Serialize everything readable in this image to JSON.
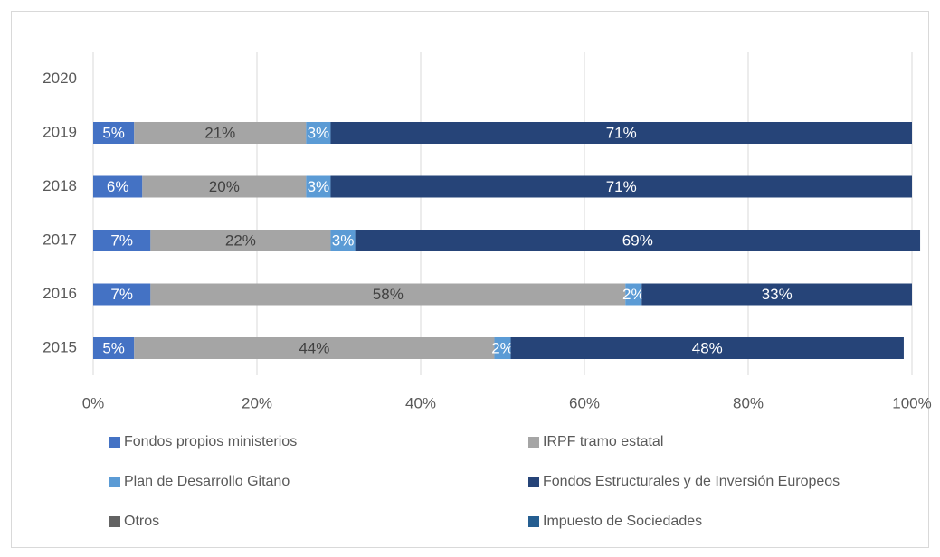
{
  "chart_data": {
    "type": "stacked-bar-horizontal",
    "categories": [
      "2015",
      "2016",
      "2017",
      "2018",
      "2019",
      "2020"
    ],
    "series": [
      {
        "name": "Fondos propios ministerios",
        "color": "#4472c4",
        "values": [
          5,
          7,
          7,
          6,
          5,
          null
        ],
        "value_labels": [
          "5%",
          "7%",
          "7%",
          "6%",
          "5%",
          null
        ]
      },
      {
        "name": "IRPF tramo estatal",
        "color": "#a5a5a5",
        "values": [
          44,
          58,
          22,
          20,
          21,
          null
        ],
        "value_labels": [
          "44%",
          "58%",
          "22%",
          "20%",
          "21%",
          null
        ]
      },
      {
        "name": "Plan de Desarrollo Gitano",
        "color": "#5b9bd5",
        "values": [
          2,
          2,
          3,
          3,
          3,
          null
        ],
        "value_labels": [
          "2%",
          "2%",
          "3%",
          "3%",
          "3%",
          null
        ]
      },
      {
        "name": "Fondos Estructurales y de Inversión Europeos",
        "color": "#264478",
        "values": [
          48,
          33,
          69,
          71,
          71,
          null
        ],
        "value_labels": [
          "48%",
          "33%",
          "69%",
          "71%",
          "71%",
          null
        ]
      },
      {
        "name": "Otros",
        "color": "#636363",
        "values": [
          null,
          null,
          null,
          null,
          null,
          null
        ]
      },
      {
        "name": "Impuesto de Sociedades",
        "color": "#255e91",
        "values": [
          null,
          null,
          null,
          null,
          null,
          null
        ]
      }
    ],
    "xlim": [
      0,
      100
    ],
    "xticks": [
      {
        "value": 0,
        "label": "0%"
      },
      {
        "value": 20,
        "label": "20%"
      },
      {
        "value": 40,
        "label": "40%"
      },
      {
        "value": 60,
        "label": "60%"
      },
      {
        "value": 80,
        "label": "80%"
      },
      {
        "value": 100,
        "label": "100%"
      }
    ],
    "grid": true,
    "legend": "bottom"
  }
}
